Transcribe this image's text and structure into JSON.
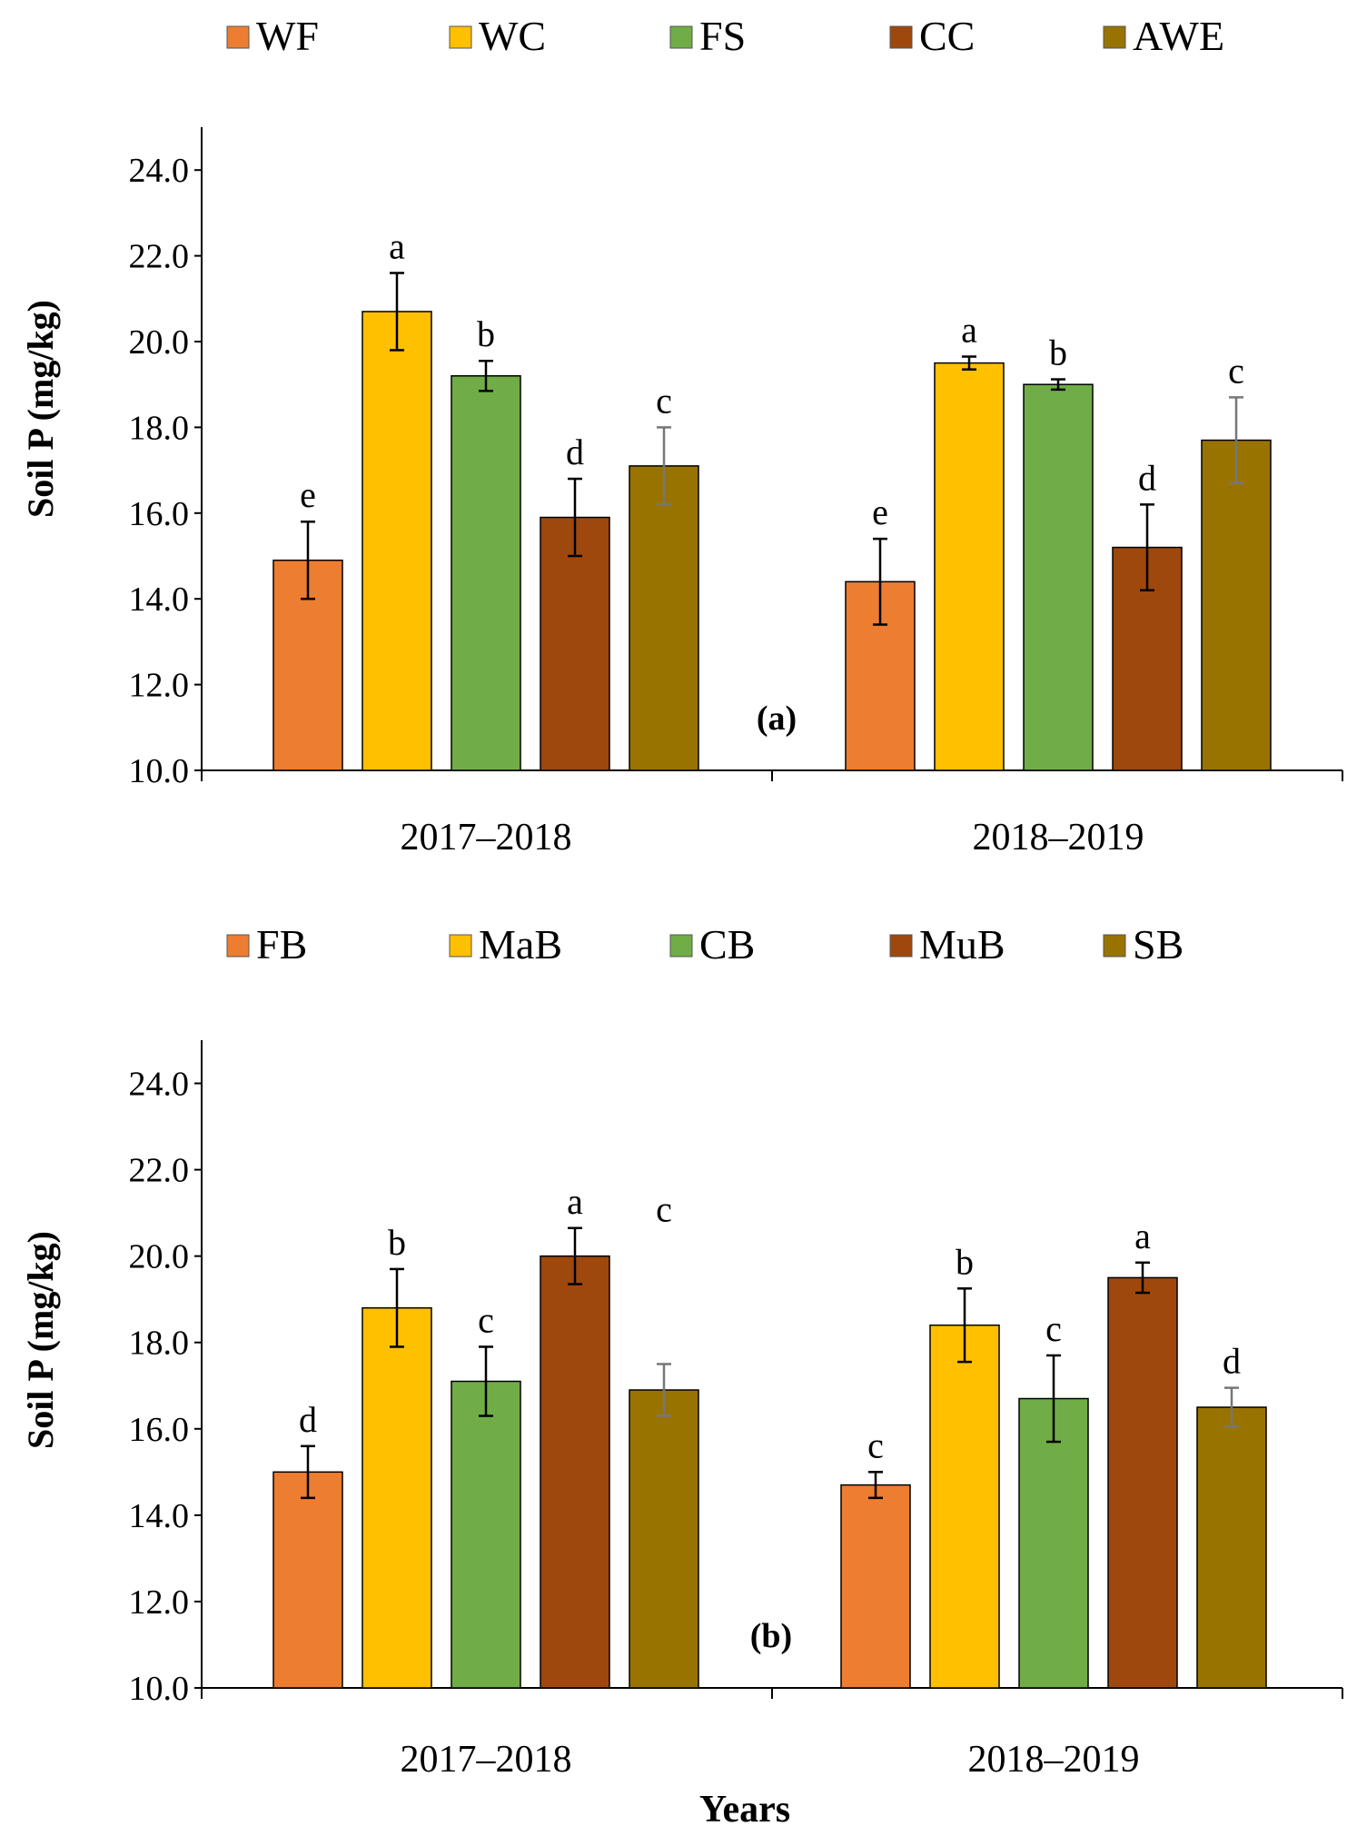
{
  "figure_title": "",
  "colors": {
    "s1": "#ED7D31",
    "s2": "#FFC000",
    "s3": "#70AD47",
    "s4": "#9E480E",
    "s5": "#997300"
  },
  "chart_data": [
    {
      "type": "bar",
      "panel_label": "(a)",
      "categories": [
        "2017–2018",
        "2018–2019"
      ],
      "series": [
        {
          "name": "WF",
          "values": [
            14.9,
            14.4
          ],
          "errors": [
            0.9,
            1.0
          ],
          "letters": [
            "e",
            "e"
          ],
          "color": "#ED7D31"
        },
        {
          "name": "WC",
          "values": [
            20.7,
            19.5
          ],
          "errors": [
            0.9,
            0.15
          ],
          "letters": [
            "a",
            "a"
          ],
          "color": "#FFC000"
        },
        {
          "name": "FS",
          "values": [
            19.2,
            19.0
          ],
          "errors": [
            0.35,
            0.12
          ],
          "letters": [
            "b",
            "b"
          ],
          "color": "#70AD47"
        },
        {
          "name": "CC",
          "values": [
            15.9,
            15.2
          ],
          "errors": [
            0.9,
            1.0
          ],
          "letters": [
            "d",
            "d"
          ],
          "color": "#9E480E"
        },
        {
          "name": "AWE",
          "values": [
            17.1,
            17.7
          ],
          "errors": [
            0.9,
            1.0
          ],
          "letters": [
            "c",
            "c"
          ],
          "color": "#997300"
        }
      ],
      "ylabel": "Soil P (mg/kg)",
      "xlabel": "",
      "ylim": [
        10.0,
        25.0
      ],
      "yticks": [
        "10.0",
        "12.0",
        "14.0",
        "16.0",
        "18.0",
        "20.0",
        "22.0",
        "24.0"
      ],
      "legend_position": "top"
    },
    {
      "type": "bar",
      "panel_label": "(b)",
      "categories": [
        "2017–2018",
        "2018–2019"
      ],
      "series": [
        {
          "name": "FB",
          "values": [
            15.0,
            14.7
          ],
          "errors": [
            0.6,
            0.3
          ],
          "letters": [
            "d",
            "c"
          ],
          "color": "#ED7D31"
        },
        {
          "name": "MaB",
          "values": [
            18.8,
            18.4
          ],
          "errors": [
            0.9,
            0.85
          ],
          "letters": [
            "b",
            "b"
          ],
          "color": "#FFC000"
        },
        {
          "name": "CB",
          "values": [
            17.1,
            16.7
          ],
          "errors": [
            0.8,
            1.0
          ],
          "letters": [
            "c",
            "c"
          ],
          "color": "#70AD47"
        },
        {
          "name": "MuB",
          "values": [
            20.0,
            19.5
          ],
          "errors": [
            0.65,
            0.35
          ],
          "letters": [
            "a",
            "a"
          ],
          "color": "#9E480E"
        },
        {
          "name": "SB",
          "values": [
            16.9,
            16.5
          ],
          "errors": [
            0.6,
            0.45
          ],
          "letters": [
            "c",
            "d"
          ],
          "color": "#997300"
        }
      ],
      "ylabel": "Soil P (mg/kg)",
      "xlabel": "Years",
      "ylim": [
        10.0,
        25.0
      ],
      "yticks": [
        "10.0",
        "12.0",
        "14.0",
        "16.0",
        "18.0",
        "20.0",
        "22.0",
        "24.0"
      ],
      "legend_position": "top"
    }
  ]
}
